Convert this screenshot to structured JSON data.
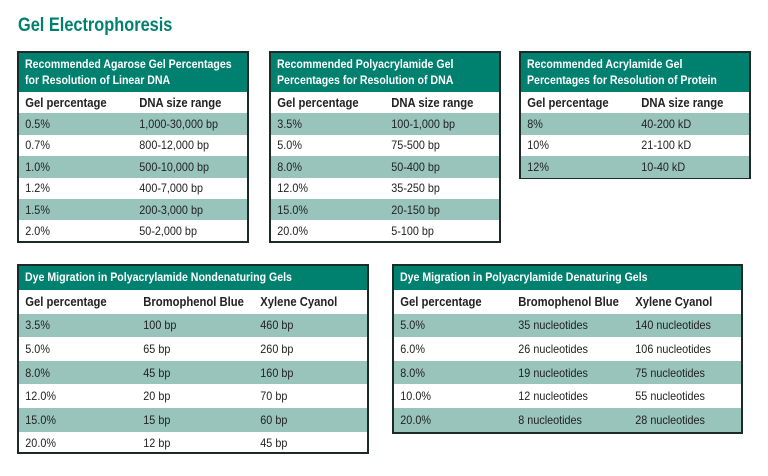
{
  "page_title": "Gel Electrophoresis",
  "colors": {
    "accent": "#00806e",
    "row_shade": "#98c4bc",
    "border": "#1e2a28"
  },
  "tables": [
    {
      "title_lines": [
        "Recommended Agarose Gel Percentages",
        "for Resolution of Linear DNA"
      ],
      "columns": [
        "Gel percentage",
        "DNA size range"
      ],
      "rows": [
        [
          "0.5%",
          "1,000-30,000 bp"
        ],
        [
          "0.7%",
          "800-12,000 bp"
        ],
        [
          "1.0%",
          "500-10,000 bp"
        ],
        [
          "1.2%",
          "400-7,000 bp"
        ],
        [
          "1.5%",
          "200-3,000 bp"
        ],
        [
          "2.0%",
          "50-2,000 bp"
        ]
      ]
    },
    {
      "title_lines": [
        "Recommended Polyacrylamide Gel",
        "Percentages for Resolution of DNA"
      ],
      "columns": [
        "Gel percentage",
        "DNA size range"
      ],
      "rows": [
        [
          "3.5%",
          "100-1,000 bp"
        ],
        [
          "5.0%",
          "75-500 bp"
        ],
        [
          "8.0%",
          "50-400 bp"
        ],
        [
          "12.0%",
          "35-250 bp"
        ],
        [
          "15.0%",
          "20-150 bp"
        ],
        [
          "20.0%",
          "5-100 bp"
        ]
      ]
    },
    {
      "title_lines": [
        "Recommended Acrylamide Gel",
        "Percentages for Resolution of Protein"
      ],
      "columns": [
        "Gel percentage",
        "DNA size range"
      ],
      "rows": [
        [
          "8%",
          "40-200 kD"
        ],
        [
          "10%",
          "21-100 kD"
        ],
        [
          "12%",
          "10-40 kD"
        ]
      ]
    },
    {
      "title_lines": [
        "Dye Migration in Polyacrylamide Nondenaturing Gels"
      ],
      "columns": [
        "Gel percentage",
        "Bromophenol Blue",
        "Xylene Cyanol"
      ],
      "rows": [
        [
          "3.5%",
          "100 bp",
          "460 bp"
        ],
        [
          "5.0%",
          "65 bp",
          "260 bp"
        ],
        [
          "8.0%",
          "45 bp",
          "160 bp"
        ],
        [
          "12.0%",
          "20 bp",
          "70 bp"
        ],
        [
          "15.0%",
          "15 bp",
          "60 bp"
        ],
        [
          "20.0%",
          "12 bp",
          "45 bp"
        ]
      ]
    },
    {
      "title_lines": [
        "Dye Migration in Polyacrylamide Denaturing Gels"
      ],
      "columns": [
        "Gel percentage",
        "Bromophenol Blue",
        "Xylene Cyanol"
      ],
      "rows": [
        [
          "5.0%",
          "35 nucleotides",
          "140 nucleotides"
        ],
        [
          "6.0%",
          "26 nucleotides",
          "106 nucleotides"
        ],
        [
          "8.0%",
          "19 nucleotides",
          "75 nucleotides"
        ],
        [
          "10.0%",
          "12 nucleotides",
          "55 nucleotides"
        ],
        [
          "20.0%",
          "8 nucleotides",
          "28 nucleotides"
        ]
      ]
    }
  ]
}
